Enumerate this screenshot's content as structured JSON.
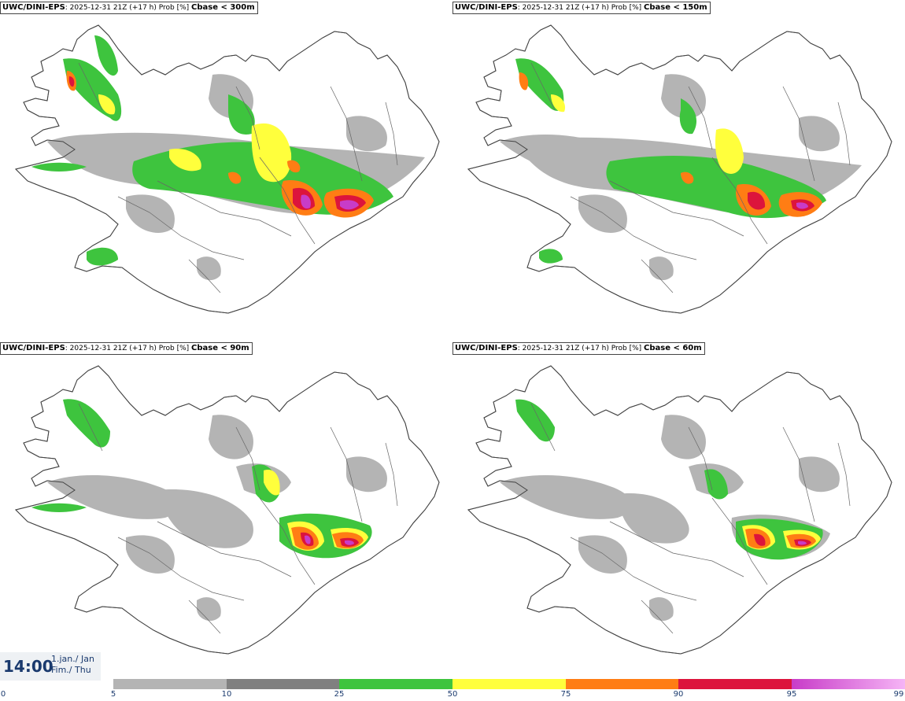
{
  "panels": [
    {
      "model": "UWC/DINI-EPS",
      "info": ": 2025-12-31 21Z (+17 h) Prob [%] ",
      "threshold": "Cbase < 300m"
    },
    {
      "model": "UWC/DINI-EPS",
      "info": ": 2025-12-31 21Z (+17 h) Prob [%] ",
      "threshold": "Cbase < 150m"
    },
    {
      "model": "UWC/DINI-EPS",
      "info": ": 2025-12-31 21Z (+17 h) Prob [%] ",
      "threshold": "Cbase < 90m"
    },
    {
      "model": "UWC/DINI-EPS",
      "info": ": 2025-12-31 21Z (+17 h) Prob [%] ",
      "threshold": "Cbase < 60m"
    }
  ],
  "time": {
    "clock": "14:00",
    "date_line1": "1.jan./ Jan",
    "date_line2": "Fim./ Thu"
  },
  "legend": {
    "ticks": [
      "0",
      "5",
      "10",
      "25",
      "50",
      "75",
      "90",
      "95",
      "99"
    ],
    "colors": {
      "5-10": "#b4b4b4",
      "10-25": "#808080",
      "25-50": "#3ec43e",
      "50-75": "#ffff3c",
      "75-90": "#ff7d14",
      "90-95": "#dc143c",
      "95-99": "#c83cc8",
      "99": "#f5b4f5"
    }
  }
}
